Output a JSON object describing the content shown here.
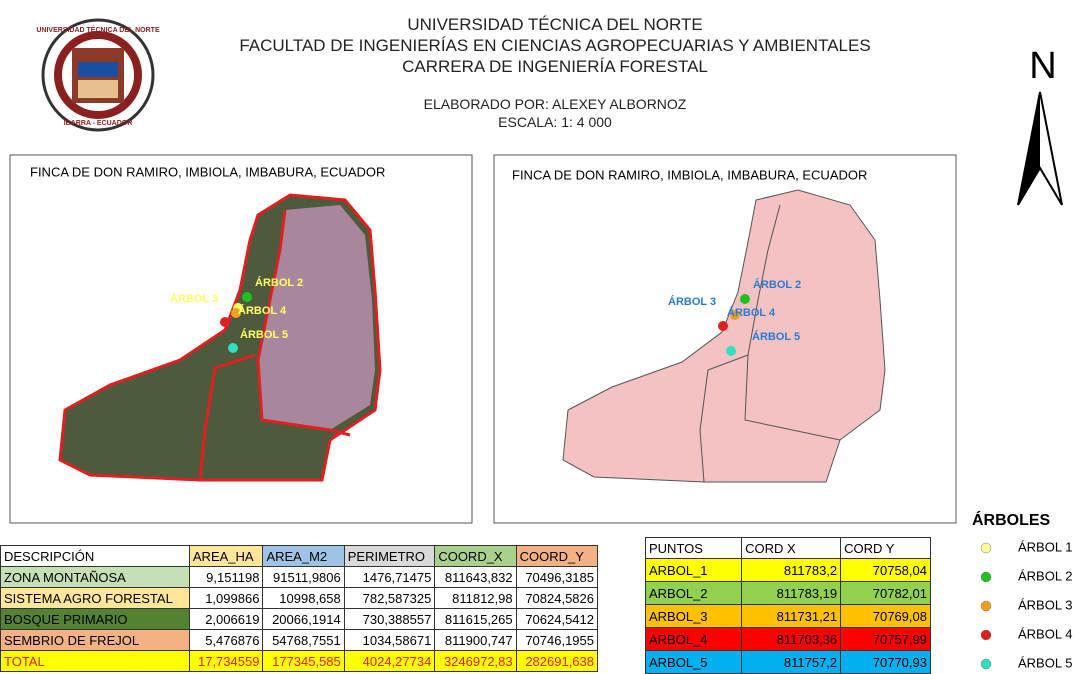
{
  "header": {
    "logo_text": [
      "UNIVERSIDAD TÉCNICA DEL NORTE",
      "IBARRA - ECUADOR"
    ],
    "title_lines": [
      "UNIVERSIDAD TÉCNICA DEL NORTE",
      "FACULTAD DE INGENIERÍAS EN CIENCIAS AGROPECUARIAS Y AMBIENTALES",
      "CARRERA DE INGENIERÍA FORESTAL"
    ],
    "author": "ELABORADO POR: ALEXEY ALBORNOZ",
    "scale": "ESCALA: 1: 4 000"
  },
  "north": "N",
  "maps": [
    {
      "title": "FINCA DE DON RAMIRO, IMBIOLA, IMBABURA, ECUADOR",
      "labels": [
        "ÁRBOL 3",
        "ÁRBOL 2",
        "ÁRBOL 4",
        "ÁRBOL 5"
      ]
    },
    {
      "title": "FINCA DE DON RAMIRO, IMBIOLA, IMBABURA, ECUADOR",
      "labels": [
        "ÁRBOL 3",
        "ÁRBOL 2",
        "ÁRBOL 4",
        "ÁRBOL 5"
      ]
    }
  ],
  "table_areas": {
    "columns": [
      "DESCRIPCIÓN",
      "AREA_HA",
      "AREA_M2",
      "PERIMETRO",
      "COORD_X",
      "COORD_Y"
    ],
    "rows": [
      [
        "ZONA MONTAÑOSA",
        "9,151198",
        "91511,9806",
        "1476,71475",
        "811643,832",
        "70496,3185"
      ],
      [
        "SISTEMA AGRO FORESTAL",
        "1,099866",
        "10998,658",
        "782,587325",
        "811812,98",
        "70824,5826"
      ],
      [
        "BOSQUE PRIMARIO",
        "2,006619",
        "20066,1914",
        "730,388557",
        "811615,265",
        "70624,5412"
      ],
      [
        "SEMBRIO DE FREJOL",
        "5,476876",
        "54768,7551",
        "1034,58671",
        "811900,747",
        "70746,1955"
      ],
      [
        "TOTAL",
        "17,734559",
        "177345,585",
        "4024,27734",
        "3246972,83",
        "282691,638"
      ]
    ]
  },
  "table_points": {
    "columns": [
      "PUNTOS",
      "CORD X",
      "CORD Y"
    ],
    "rows": [
      [
        "ARBOL_1",
        "811783,2",
        "70758,04"
      ],
      [
        "ARBOL_2",
        "811783,19",
        "70782,01"
      ],
      [
        "ARBOL_3",
        "811731,21",
        "70769,08"
      ],
      [
        "ARBOL_4",
        "811703,36",
        "70757,99"
      ],
      [
        "ARBOL_5",
        "811757,2",
        "70770,93"
      ]
    ]
  },
  "legend": {
    "title": "ÁRBOLES",
    "items": [
      "ÁRBOL 1",
      "ÁRBOL 2",
      "ÁRBOL 3",
      "ÁRBOL 4",
      "ÁRBOL 5"
    ]
  }
}
